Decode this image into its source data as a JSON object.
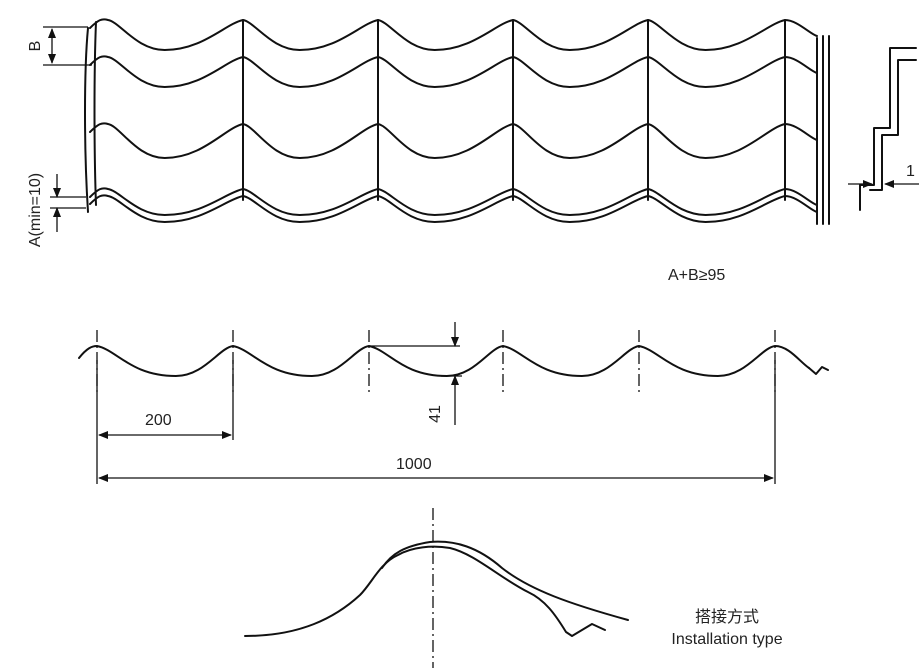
{
  "top_view": {
    "dim_b": "B",
    "dim_a": "A(min=10)",
    "formula": "A+B≥95"
  },
  "side_view": {
    "partial_label": "1"
  },
  "profile_view": {
    "dim_pitch": "200",
    "dim_height": "41",
    "dim_total": "1000"
  },
  "overlap_view": {
    "caption_cn": "搭接方式",
    "caption_en": "Installation type"
  }
}
